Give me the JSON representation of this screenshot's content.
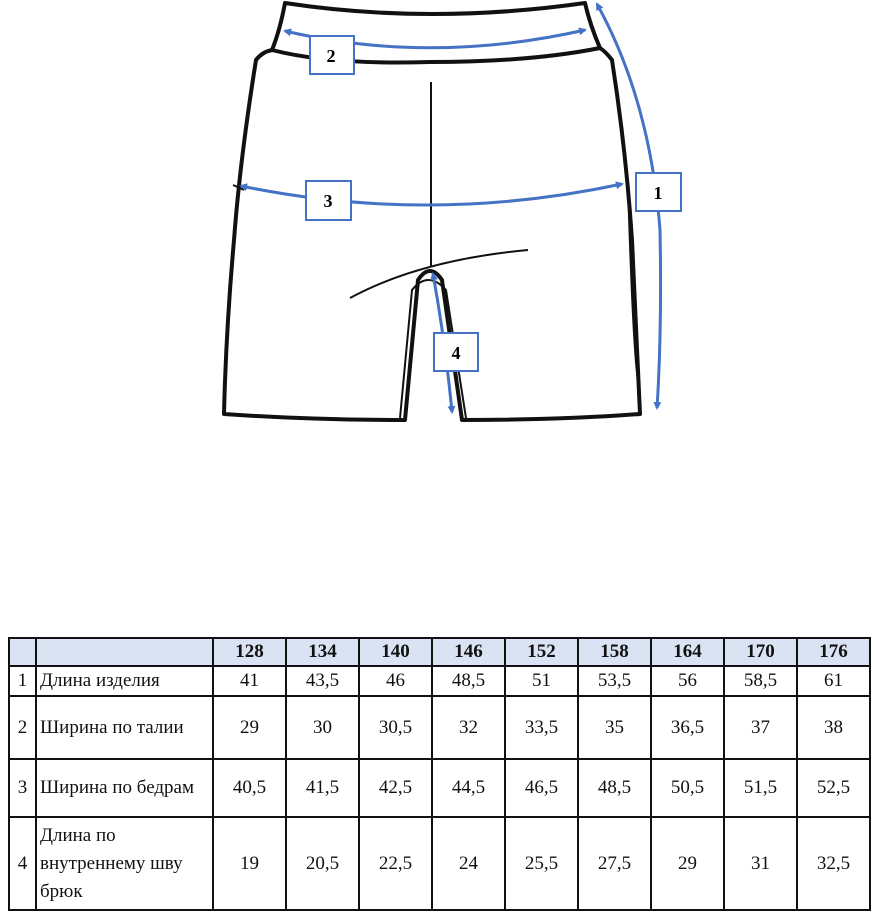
{
  "diagram": {
    "markers": [
      "1",
      "2",
      "3",
      "4"
    ],
    "outline_color": "#111111",
    "arrow_color": "#4472c4"
  },
  "table": {
    "header_bg": "#dae3f3",
    "sizes": [
      "128",
      "134",
      "140",
      "146",
      "152",
      "158",
      "164",
      "170",
      "176"
    ],
    "rows": [
      {
        "num": "1",
        "name": "Длина изделия",
        "values": [
          "41",
          "43,5",
          "46",
          "48,5",
          "51",
          "53,5",
          "56",
          "58,5",
          "61"
        ]
      },
      {
        "num": "2",
        "name": "Ширина по талии",
        "values": [
          "29",
          "30",
          "30,5",
          "32",
          "33,5",
          "35",
          "36,5",
          "37",
          "38"
        ]
      },
      {
        "num": "3",
        "name": "Ширина по бедрам",
        "values": [
          "40,5",
          "41,5",
          "42,5",
          "44,5",
          "46,5",
          "48,5",
          "50,5",
          "51,5",
          "52,5"
        ]
      },
      {
        "num": "4",
        "name": "Длина по внутреннему шву брюк",
        "values": [
          "19",
          "20,5",
          "22,5",
          "24",
          "25,5",
          "27,5",
          "29",
          "31",
          "32,5"
        ]
      }
    ]
  }
}
